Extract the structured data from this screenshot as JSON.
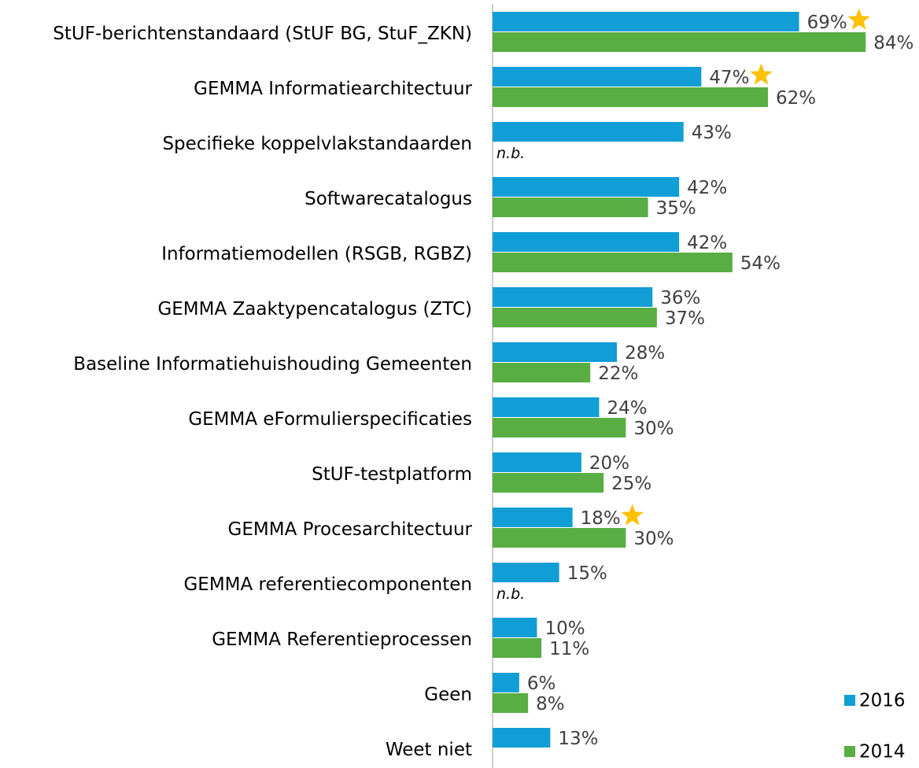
{
  "chart_data": {
    "type": "bar",
    "orientation": "horizontal",
    "categories": [
      "StUF-berichtenstandaard (StUF BG, StuF_ZKN)",
      "GEMMA Informatiearchitectuur",
      "Specifieke koppelvlakstandaarden",
      "Softwarecatalogus",
      "Informatiemodellen (RSGB, RGBZ)",
      "GEMMA Zaaktypencatalogus (ZTC)",
      "Baseline Informatiehuishouding Gemeenten",
      "GEMMA eFormulierspecificaties",
      "StUF-testplatform",
      "GEMMA Procesarchitectuur",
      "GEMMA referentiecomponenten",
      "GEMMA Referentieprocessen",
      "Geen",
      "Weet niet"
    ],
    "series": [
      {
        "name": "2016",
        "color": "#119ED6",
        "values": [
          69,
          47,
          43,
          42,
          42,
          36,
          28,
          24,
          20,
          18,
          15,
          10,
          6,
          13
        ],
        "value_labels": [
          "69%",
          "47%",
          "43%",
          "42%",
          "42%",
          "36%",
          "28%",
          "24%",
          "20%",
          "18%",
          "15%",
          "10%",
          "6%",
          "13%"
        ],
        "starred": [
          true,
          true,
          false,
          false,
          false,
          false,
          false,
          false,
          false,
          true,
          false,
          false,
          false,
          false
        ]
      },
      {
        "name": "2014",
        "color": "#58AE42",
        "values": [
          84,
          62,
          null,
          35,
          54,
          37,
          22,
          30,
          25,
          30,
          null,
          11,
          8,
          null
        ],
        "value_labels": [
          "84%",
          "62%",
          "n.b.",
          "35%",
          "54%",
          "37%",
          "22%",
          "30%",
          "25%",
          "30%",
          "n.b.",
          "11%",
          "8%",
          null
        ]
      }
    ],
    "xlim": [
      0,
      96
    ],
    "legend": "bottom-right",
    "star_color": "#FFC000"
  }
}
